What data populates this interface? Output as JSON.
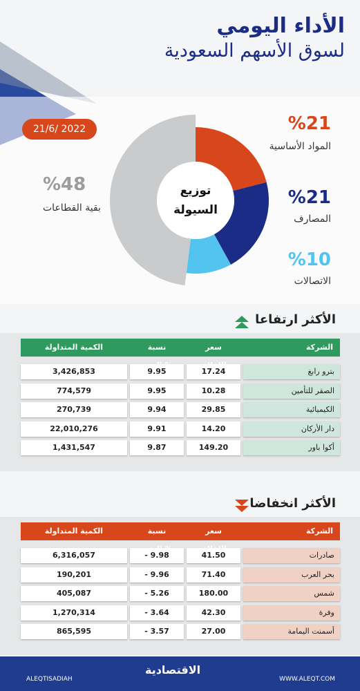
{
  "header": {
    "title": "الأداء اليومي",
    "subtitle": "لسوق الأسهم السعودية",
    "date": "21/6/ 2022"
  },
  "chart_data": {
    "type": "pie",
    "center_label": [
      "توزيع",
      "السيولة"
    ],
    "categories": [
      "المواد الأساسية",
      "المصارف",
      "الاتصالات",
      "بقية القطاعات"
    ],
    "values": [
      21,
      21,
      10,
      48
    ],
    "value_labels": [
      "%21",
      "%21",
      "%10",
      "%48"
    ],
    "colors": [
      "#d8461b",
      "#1b2c86",
      "#52c4ef",
      "#c9cbcc"
    ]
  },
  "gainers": {
    "title": "الأكثر ارتفاعا",
    "columns": [
      "الشركة",
      "سعر الإغلاق",
      "نسبة التغير %",
      "الكمية المتداولة"
    ],
    "rows": [
      [
        "بترو رابغ",
        "17.24",
        "9.95",
        "3,426,853"
      ],
      [
        "الصقر للتأمين",
        "10.28",
        "9.95",
        "774,579"
      ],
      [
        "الكيميائية",
        "29.85",
        "9.94",
        "270,739"
      ],
      [
        "دار الأركان",
        "14.20",
        "9.91",
        "22,010,276"
      ],
      [
        "أكوا باور",
        "149.20",
        "9.87",
        "1,431,547"
      ]
    ]
  },
  "losers": {
    "title": "الأكثر انخفاضا",
    "columns": [
      "الشركة",
      "سعر الإغلاق",
      "نسبة التغير %",
      "الكمية المتداولة"
    ],
    "rows": [
      [
        "صادرات",
        "41.50",
        "- 9.98",
        "6,316,057"
      ],
      [
        "بحر العرب",
        "71.40",
        "- 9.96",
        "190,201"
      ],
      [
        "شمس",
        "180.00",
        "- 5.26",
        "405,087"
      ],
      [
        "وفرة",
        "42.30",
        "- 3.64",
        "1,270,314"
      ],
      [
        "أسمنت اليمامة",
        "27.00",
        "- 3.57",
        "865,595"
      ]
    ]
  },
  "footer": {
    "handle": "ALEQTISADIAH",
    "brand": "الاقتصادية",
    "website": "WWW.ALEQT.COM"
  }
}
